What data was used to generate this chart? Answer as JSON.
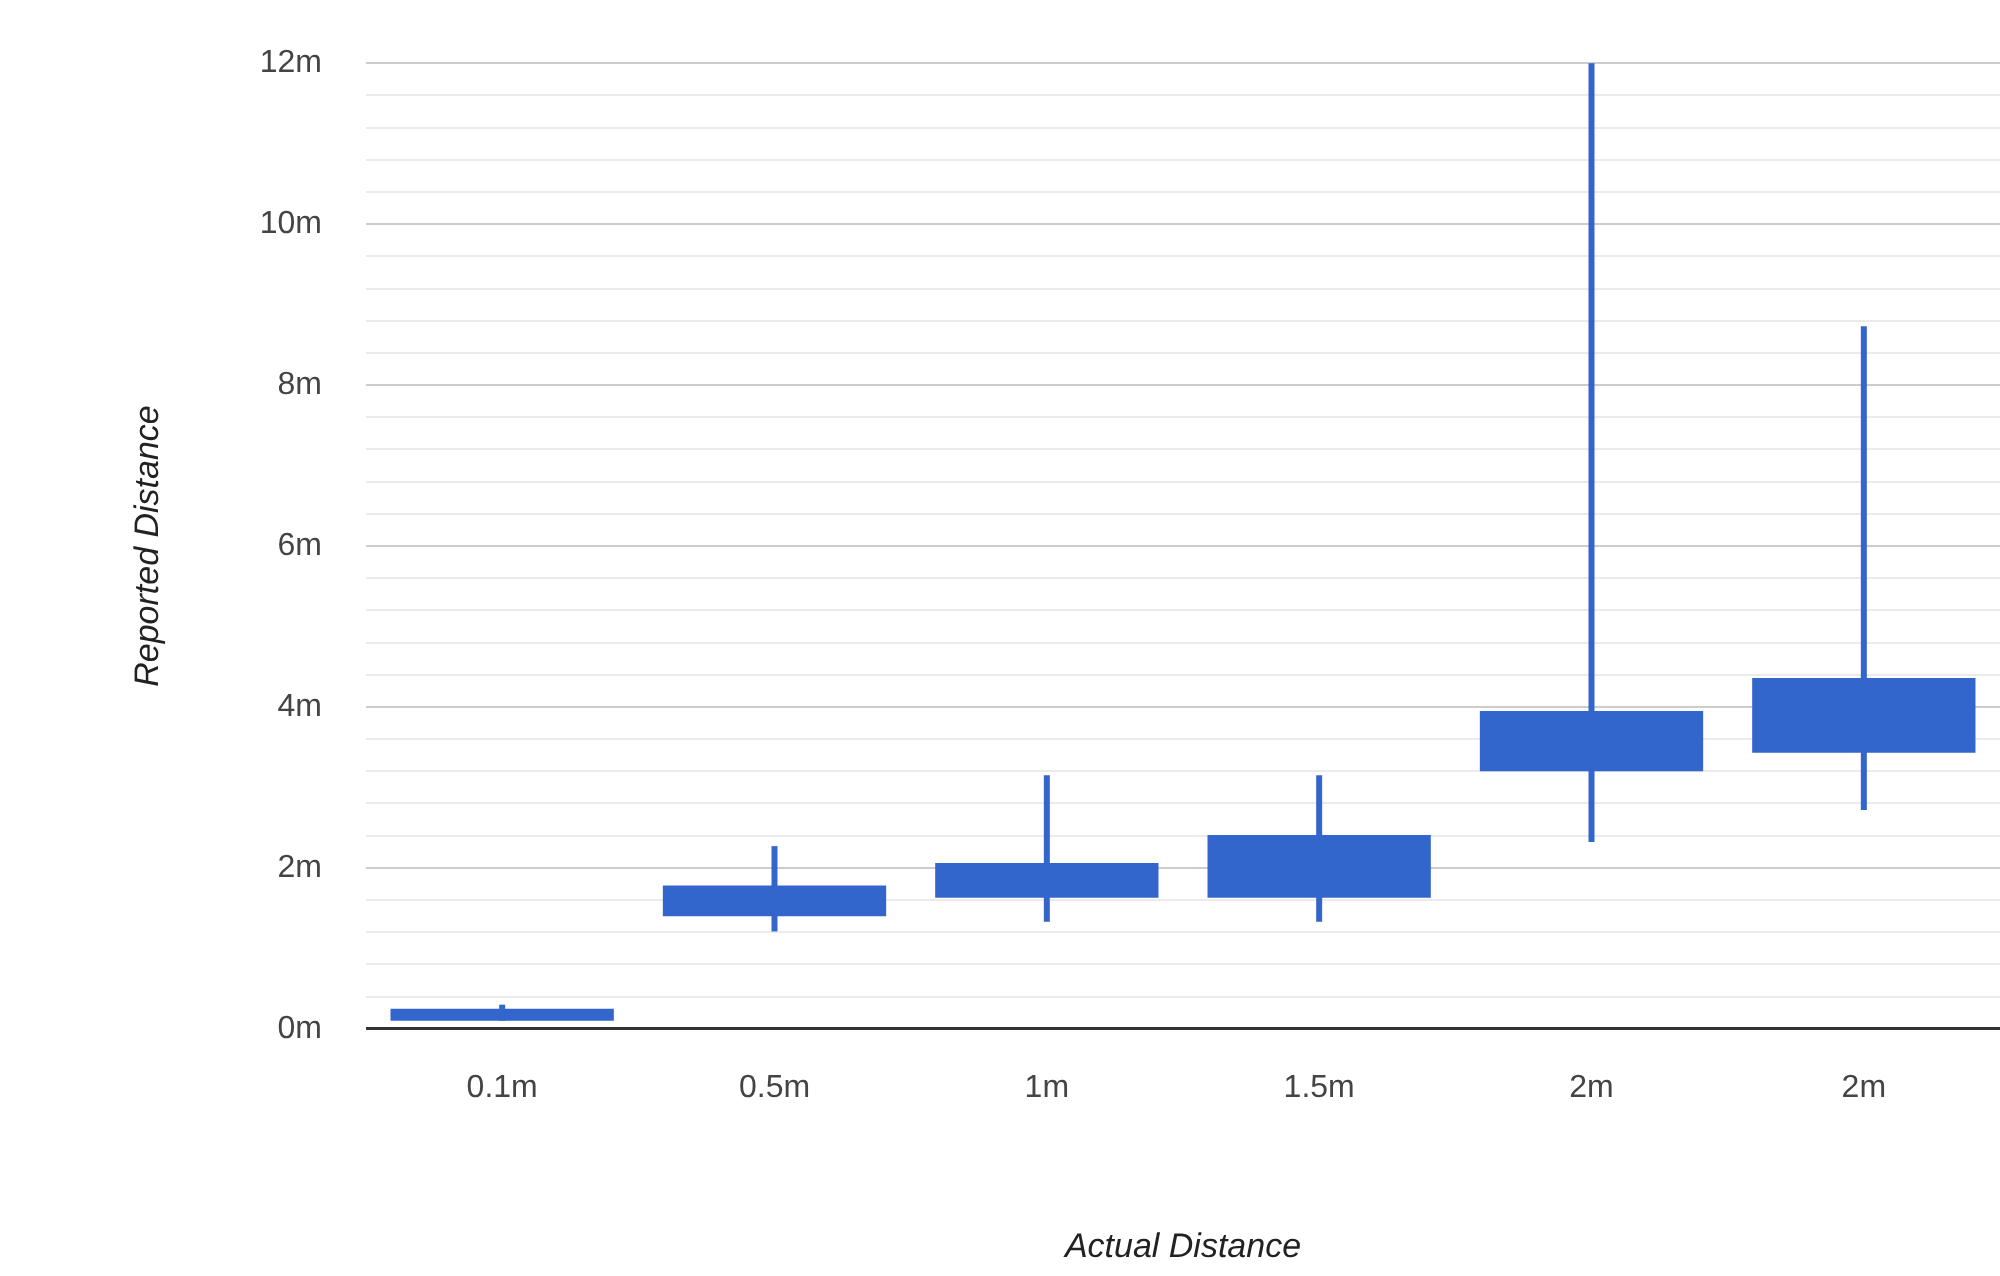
{
  "chart_data": {
    "type": "candlestick",
    "xlabel": "Actual Distance",
    "ylabel": "Reported Distance",
    "categories": [
      "0.1m",
      "0.5m",
      "1m",
      "1.5m",
      "2m",
      "2m"
    ],
    "ohlc": [
      [
        0.1,
        0.3,
        0.1,
        0.25
      ],
      [
        1.4,
        2.27,
        1.21,
        1.78
      ],
      [
        1.63,
        3.15,
        1.33,
        2.06
      ],
      [
        1.63,
        3.15,
        1.33,
        2.41
      ],
      [
        3.2,
        12,
        2.32,
        3.95
      ],
      [
        3.43,
        8.73,
        2.72,
        4.36
      ]
    ],
    "color": "#3366cc",
    "ylim": [
      0,
      12
    ],
    "yticks": [
      {
        "value": 0,
        "label": "0m"
      },
      {
        "value": 0.4,
        "label": null
      },
      {
        "value": 0.8,
        "label": null
      },
      {
        "value": 1.2,
        "label": null
      },
      {
        "value": 1.6,
        "label": null
      },
      {
        "value": 2,
        "label": "2m"
      },
      {
        "value": 2.4,
        "label": null
      },
      {
        "value": 2.8,
        "label": null
      },
      {
        "value": 3.2,
        "label": null
      },
      {
        "value": 3.6,
        "label": null
      },
      {
        "value": 4,
        "label": "4m"
      },
      {
        "value": 4.4,
        "label": null
      },
      {
        "value": 4.8,
        "label": null
      },
      {
        "value": 5.2,
        "label": null
      },
      {
        "value": 5.6,
        "label": null
      },
      {
        "value": 6,
        "label": "6m"
      },
      {
        "value": 6.4,
        "label": null
      },
      {
        "value": 6.8,
        "label": null
      },
      {
        "value": 7.2,
        "label": null
      },
      {
        "value": 7.6,
        "label": null
      },
      {
        "value": 8,
        "label": "8m"
      },
      {
        "value": 8.4,
        "label": null
      },
      {
        "value": 8.8,
        "label": null
      },
      {
        "value": 9.2,
        "label": null
      },
      {
        "value": 9.6,
        "label": null
      },
      {
        "value": 10,
        "label": "10m"
      },
      {
        "value": 10.4,
        "label": null
      },
      {
        "value": 10.8,
        "label": null
      },
      {
        "value": 11.2,
        "label": null
      },
      {
        "value": 11.6,
        "label": null
      },
      {
        "value": 12,
        "label": "12m"
      }
    ],
    "grid": true,
    "legend": false
  }
}
